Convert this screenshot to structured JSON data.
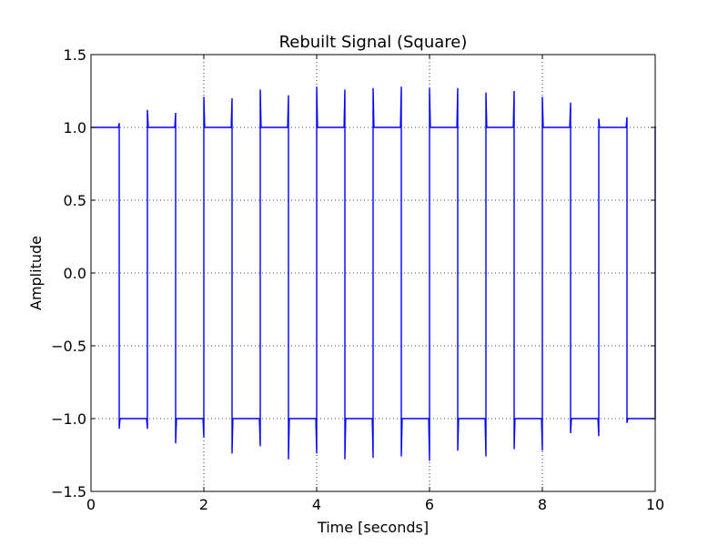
{
  "chart_data": {
    "type": "line",
    "title": "Rebuilt Signal (Square)",
    "xlabel": "Time [seconds]",
    "ylabel": "Amplitude",
    "xlim": [
      0,
      10
    ],
    "ylim": [
      -1.5,
      1.5
    ],
    "x_ticks": [
      "0",
      "2",
      "4",
      "6",
      "8",
      "10"
    ],
    "y_ticks": [
      "1.5",
      "1.0",
      "0.5",
      "0.0",
      "−0.5",
      "−1.0",
      "−1.5"
    ],
    "grid": true,
    "series": [
      {
        "color": "#0000ff",
        "square_levels": [
          1,
          -1
        ],
        "transitions": [
          0.5,
          1.0,
          1.5,
          2.0,
          2.5,
          3.0,
          3.5,
          4.0,
          4.5,
          5.0,
          5.5,
          6.0,
          6.5,
          7.0,
          7.5,
          8.0,
          8.5,
          9.0,
          9.5,
          10.0
        ],
        "overshoot_peaks": [
          1.03,
          1.12,
          1.1,
          1.21,
          1.2,
          1.26,
          1.22,
          1.28,
          1.26,
          1.27,
          1.28,
          1.27,
          1.27,
          1.24,
          1.25,
          1.21,
          1.17,
          1.06,
          1.07,
          1.0
        ],
        "undershoot_peaks": [
          -1.07,
          -1.07,
          -1.17,
          -1.13,
          -1.24,
          -1.19,
          -1.28,
          -1.24,
          -1.28,
          -1.27,
          -1.26,
          -1.29,
          -1.22,
          -1.26,
          -1.21,
          -1.22,
          -1.1,
          -1.12,
          -1.03,
          -1.0
        ]
      }
    ]
  }
}
